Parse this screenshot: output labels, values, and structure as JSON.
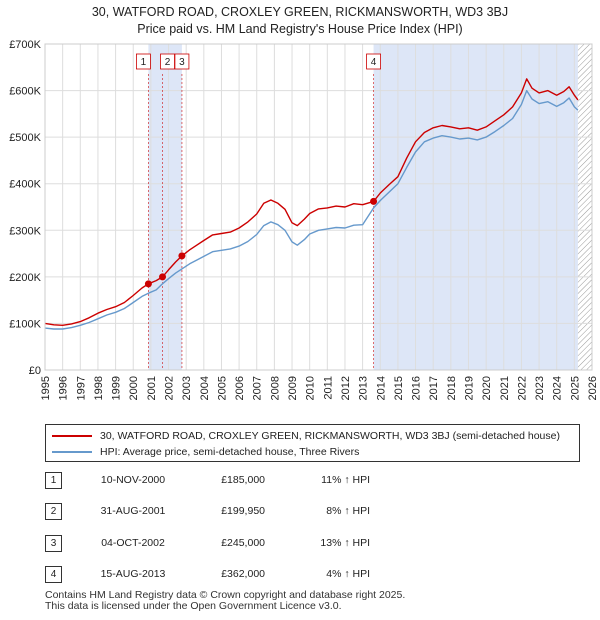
{
  "chart_data": {
    "type": "line",
    "title": "30, WATFORD ROAD, CROXLEY GREEN, RICKMANSWORTH, WD3 3BJ",
    "subtitle": "Price paid vs. HM Land Registry's House Price Index (HPI)",
    "xlim": [
      1995,
      2026
    ],
    "ylim": [
      0,
      700000
    ],
    "x_ticks": [
      "1995",
      "1996",
      "1997",
      "1998",
      "1999",
      "2000",
      "2001",
      "2002",
      "2003",
      "2004",
      "2005",
      "2006",
      "2007",
      "2008",
      "2009",
      "2010",
      "2011",
      "2012",
      "2013",
      "2014",
      "2015",
      "2016",
      "2017",
      "2018",
      "2019",
      "2020",
      "2021",
      "2022",
      "2023",
      "2024",
      "2025",
      "2026"
    ],
    "y_ticks": [
      {
        "value": 0,
        "label": "£0"
      },
      {
        "value": 100000,
        "label": "£100K"
      },
      {
        "value": 200000,
        "label": "£200K"
      },
      {
        "value": 300000,
        "label": "£300K"
      },
      {
        "value": 400000,
        "label": "£400K"
      },
      {
        "value": 500000,
        "label": "£500K"
      },
      {
        "value": 600000,
        "label": "£600K"
      },
      {
        "value": 700000,
        "label": "£700K"
      }
    ],
    "shaded_periods": [
      [
        2000.86,
        2002.76
      ],
      [
        2013.62,
        2025.2
      ]
    ],
    "hatched_from": 2025.2,
    "series": [
      {
        "name": "30, WATFORD ROAD, CROXLEY GREEN, RICKMANSWORTH, WD3 3BJ (semi-detached house)",
        "color": "#cc0000",
        "points": [
          [
            1995.0,
            100000
          ],
          [
            1995.5,
            97000
          ],
          [
            1996.0,
            96000
          ],
          [
            1996.5,
            99000
          ],
          [
            1997.0,
            104000
          ],
          [
            1997.5,
            112000
          ],
          [
            1998.0,
            122000
          ],
          [
            1998.5,
            130000
          ],
          [
            1999.0,
            136000
          ],
          [
            1999.5,
            145000
          ],
          [
            2000.0,
            160000
          ],
          [
            2000.5,
            176000
          ],
          [
            2000.86,
            185000
          ],
          [
            2001.3,
            192000
          ],
          [
            2001.66,
            199950
          ],
          [
            2002.0,
            215000
          ],
          [
            2002.4,
            232000
          ],
          [
            2002.76,
            245000
          ],
          [
            2003.2,
            258000
          ],
          [
            2003.6,
            268000
          ],
          [
            2004.0,
            278000
          ],
          [
            2004.5,
            290000
          ],
          [
            2005.0,
            293000
          ],
          [
            2005.5,
            296000
          ],
          [
            2006.0,
            305000
          ],
          [
            2006.5,
            318000
          ],
          [
            2007.0,
            335000
          ],
          [
            2007.4,
            358000
          ],
          [
            2007.8,
            365000
          ],
          [
            2008.2,
            358000
          ],
          [
            2008.6,
            345000
          ],
          [
            2009.0,
            316000
          ],
          [
            2009.3,
            310000
          ],
          [
            2009.7,
            324000
          ],
          [
            2010.0,
            336000
          ],
          [
            2010.5,
            346000
          ],
          [
            2011.0,
            348000
          ],
          [
            2011.5,
            352000
          ],
          [
            2012.0,
            350000
          ],
          [
            2012.5,
            357000
          ],
          [
            2013.0,
            355000
          ],
          [
            2013.62,
            362000
          ],
          [
            2014.0,
            380000
          ],
          [
            2014.5,
            398000
          ],
          [
            2015.0,
            415000
          ],
          [
            2015.5,
            455000
          ],
          [
            2016.0,
            490000
          ],
          [
            2016.5,
            510000
          ],
          [
            2017.0,
            520000
          ],
          [
            2017.5,
            525000
          ],
          [
            2018.0,
            522000
          ],
          [
            2018.5,
            518000
          ],
          [
            2019.0,
            520000
          ],
          [
            2019.5,
            515000
          ],
          [
            2020.0,
            522000
          ],
          [
            2020.5,
            535000
          ],
          [
            2021.0,
            548000
          ],
          [
            2021.5,
            565000
          ],
          [
            2022.0,
            595000
          ],
          [
            2022.3,
            625000
          ],
          [
            2022.6,
            605000
          ],
          [
            2023.0,
            595000
          ],
          [
            2023.5,
            600000
          ],
          [
            2024.0,
            590000
          ],
          [
            2024.4,
            598000
          ],
          [
            2024.7,
            608000
          ],
          [
            2025.0,
            590000
          ],
          [
            2025.2,
            580000
          ]
        ]
      },
      {
        "name": "HPI: Average price, semi-detached house, Three Rivers",
        "color": "#6699cc",
        "points": [
          [
            1995.0,
            90000
          ],
          [
            1995.5,
            88000
          ],
          [
            1996.0,
            88000
          ],
          [
            1996.5,
            91000
          ],
          [
            1997.0,
            96000
          ],
          [
            1997.5,
            102000
          ],
          [
            1998.0,
            110000
          ],
          [
            1998.5,
            118000
          ],
          [
            1999.0,
            124000
          ],
          [
            1999.5,
            132000
          ],
          [
            2000.0,
            145000
          ],
          [
            2000.5,
            158000
          ],
          [
            2000.86,
            165000
          ],
          [
            2001.3,
            172000
          ],
          [
            2001.66,
            185000
          ],
          [
            2002.0,
            196000
          ],
          [
            2002.4,
            208000
          ],
          [
            2002.76,
            217000
          ],
          [
            2003.2,
            228000
          ],
          [
            2003.6,
            236000
          ],
          [
            2004.0,
            244000
          ],
          [
            2004.5,
            254000
          ],
          [
            2005.0,
            257000
          ],
          [
            2005.5,
            260000
          ],
          [
            2006.0,
            266000
          ],
          [
            2006.5,
            276000
          ],
          [
            2007.0,
            291000
          ],
          [
            2007.4,
            310000
          ],
          [
            2007.8,
            318000
          ],
          [
            2008.2,
            312000
          ],
          [
            2008.6,
            300000
          ],
          [
            2009.0,
            275000
          ],
          [
            2009.3,
            268000
          ],
          [
            2009.7,
            280000
          ],
          [
            2010.0,
            292000
          ],
          [
            2010.5,
            300000
          ],
          [
            2011.0,
            303000
          ],
          [
            2011.5,
            306000
          ],
          [
            2012.0,
            305000
          ],
          [
            2012.5,
            311000
          ],
          [
            2013.0,
            312000
          ],
          [
            2013.62,
            348000
          ],
          [
            2014.0,
            364000
          ],
          [
            2014.5,
            382000
          ],
          [
            2015.0,
            400000
          ],
          [
            2015.5,
            435000
          ],
          [
            2016.0,
            468000
          ],
          [
            2016.5,
            490000
          ],
          [
            2017.0,
            498000
          ],
          [
            2017.5,
            503000
          ],
          [
            2018.0,
            500000
          ],
          [
            2018.5,
            496000
          ],
          [
            2019.0,
            498000
          ],
          [
            2019.5,
            494000
          ],
          [
            2020.0,
            500000
          ],
          [
            2020.5,
            512000
          ],
          [
            2021.0,
            525000
          ],
          [
            2021.5,
            540000
          ],
          [
            2022.0,
            570000
          ],
          [
            2022.3,
            600000
          ],
          [
            2022.6,
            582000
          ],
          [
            2023.0,
            572000
          ],
          [
            2023.5,
            576000
          ],
          [
            2024.0,
            566000
          ],
          [
            2024.4,
            574000
          ],
          [
            2024.7,
            584000
          ],
          [
            2025.0,
            565000
          ],
          [
            2025.2,
            558000
          ]
        ]
      }
    ],
    "markers": [
      {
        "num": "1",
        "x": 2000.86,
        "y": 185000
      },
      {
        "num": "2",
        "x": 2001.66,
        "y": 199950
      },
      {
        "num": "3",
        "x": 2002.76,
        "y": 245000
      },
      {
        "num": "4",
        "x": 2013.62,
        "y": 362000
      }
    ]
  },
  "legend": {
    "red_label": "30, WATFORD ROAD, CROXLEY GREEN, RICKMANSWORTH, WD3 3BJ (semi-detached house)",
    "blue_label": "HPI: Average price, semi-detached house, Three Rivers"
  },
  "sales": [
    {
      "num": "1",
      "date": "10-NOV-2000",
      "price": "£185,000",
      "pct": "11% ↑ HPI"
    },
    {
      "num": "2",
      "date": "31-AUG-2001",
      "price": "£199,950",
      "pct": "8% ↑ HPI"
    },
    {
      "num": "3",
      "date": "04-OCT-2002",
      "price": "£245,000",
      "pct": "13% ↑ HPI"
    },
    {
      "num": "4",
      "date": "15-AUG-2013",
      "price": "£362,000",
      "pct": "4% ↑ HPI"
    }
  ],
  "footer": {
    "line1": "Contains HM Land Registry data © Crown copyright and database right 2025.",
    "line2": "This data is licensed under the Open Government Licence v3.0."
  }
}
